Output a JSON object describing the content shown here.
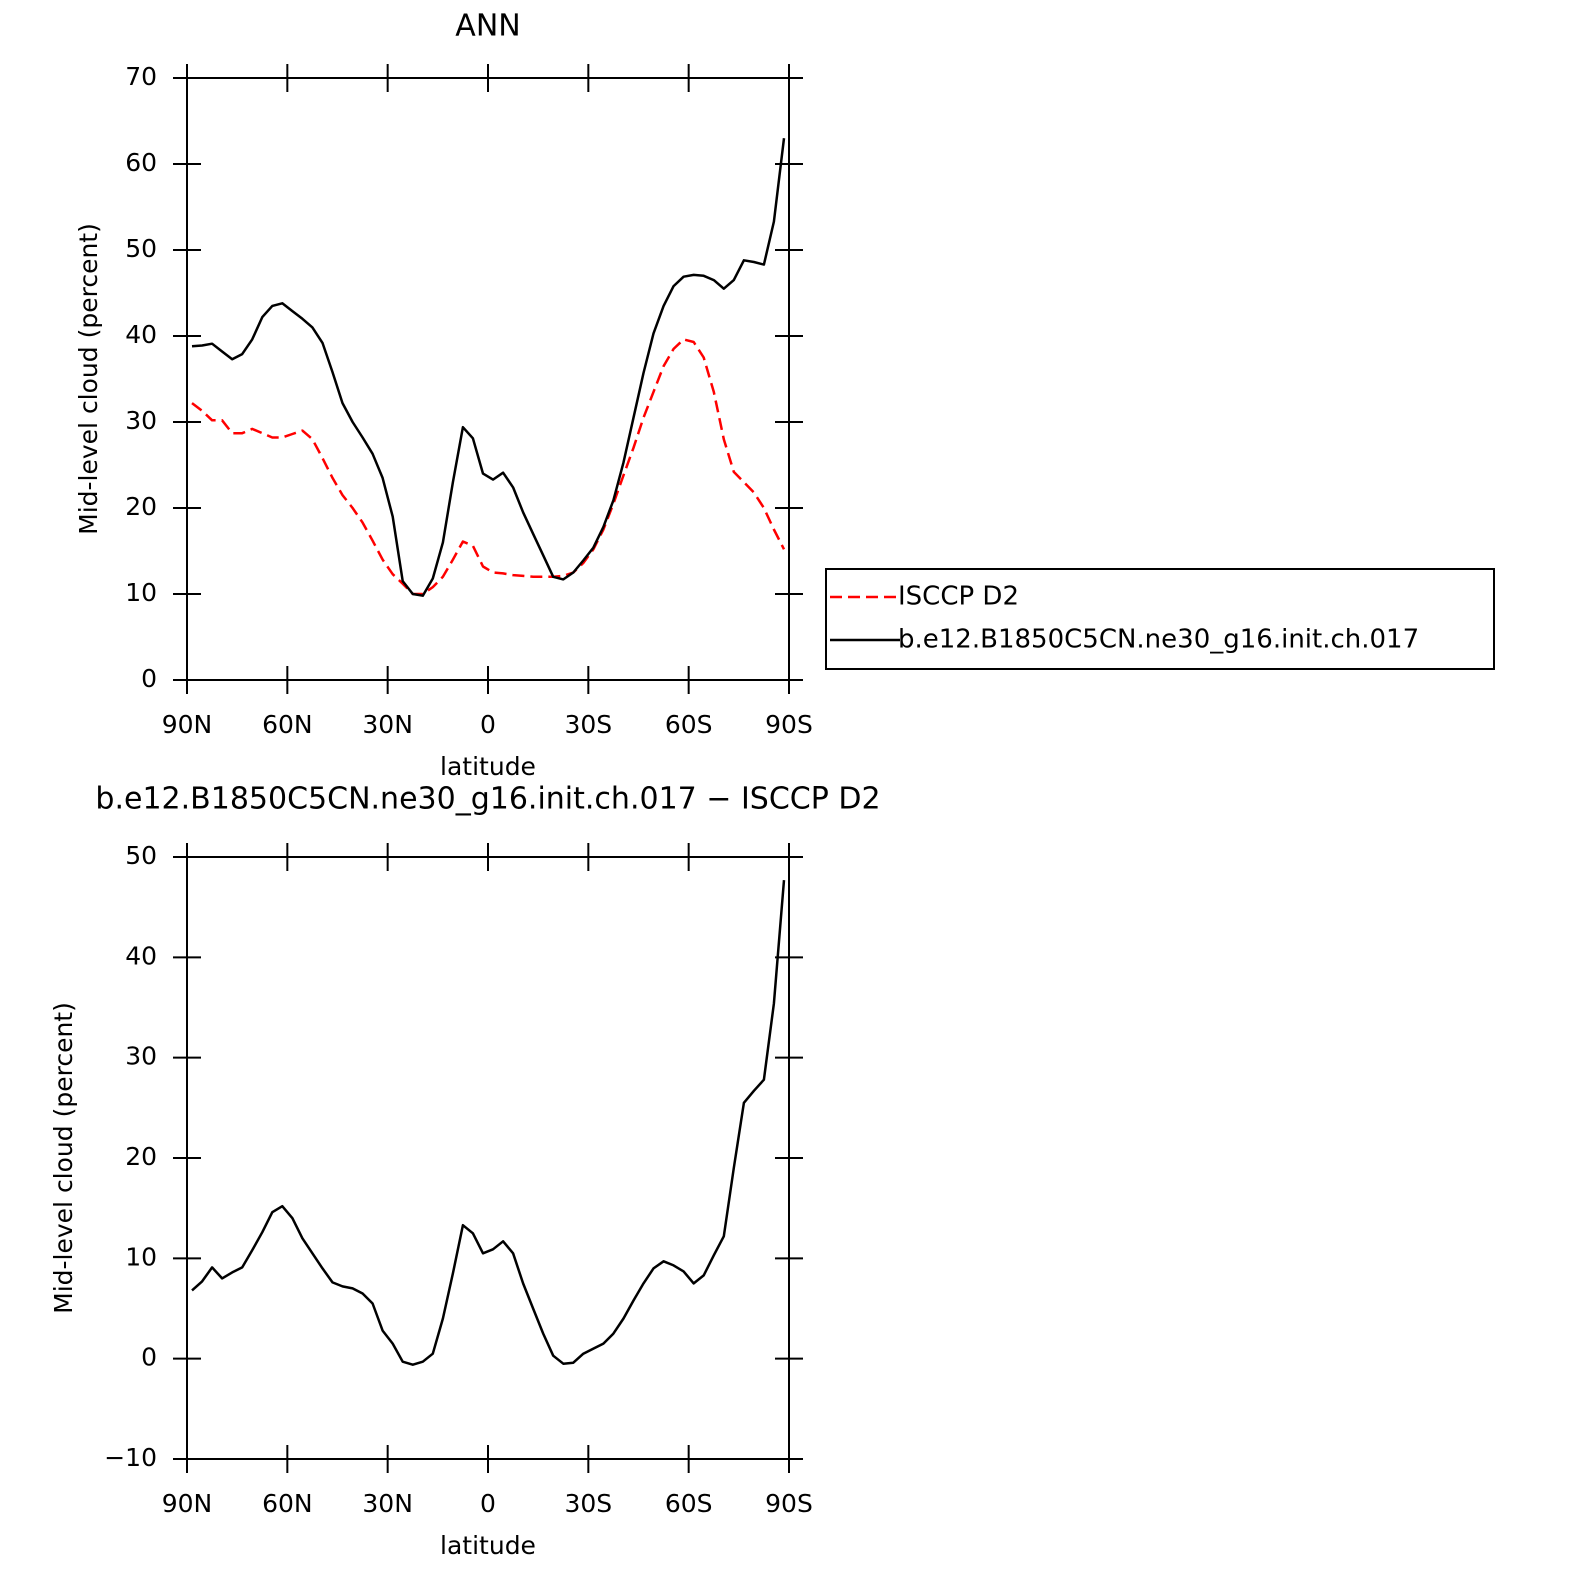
{
  "chart_data": [
    {
      "type": "line",
      "title": "ANN",
      "xlabel": "latitude",
      "ylabel": "Mid-level cloud (percent)",
      "x": [
        88.5,
        85.5,
        82.5,
        79.5,
        76.5,
        73.5,
        70.5,
        67.5,
        64.5,
        61.5,
        58.5,
        55.5,
        52.5,
        49.5,
        46.5,
        43.5,
        40.5,
        37.5,
        34.5,
        31.5,
        28.5,
        25.5,
        22.5,
        19.5,
        16.5,
        13.5,
        10.5,
        7.5,
        4.5,
        1.5,
        -1.5,
        -4.5,
        -7.5,
        -10.5,
        -13.5,
        -16.5,
        -19.5,
        -22.5,
        -25.5,
        -28.5,
        -31.5,
        -34.5,
        -37.5,
        -40.5,
        -43.5,
        -46.5,
        -49.5,
        -52.5,
        -55.5,
        -58.5,
        -61.5,
        -64.5,
        -67.5,
        -70.5,
        -73.5,
        -76.5,
        -79.5,
        -82.5,
        -85.5,
        -88.5
      ],
      "series": [
        {
          "name": "ISCCP D2",
          "color": "#ff0000",
          "style": "dashed",
          "values": [
            32.2,
            31.3,
            30.2,
            30.2,
            28.7,
            28.7,
            29.2,
            28.7,
            28.2,
            28.2,
            28.6,
            29.0,
            28.0,
            25.8,
            23.5,
            21.5,
            20.0,
            18.3,
            16.2,
            14.0,
            12.3,
            11.2,
            10.0,
            10.0,
            10.8,
            12.0,
            14.0,
            16.1,
            15.6,
            13.2,
            12.5,
            12.4,
            12.2,
            12.1,
            12.0,
            12.0,
            12.0,
            12.1,
            12.5,
            13.6,
            15.2,
            17.5,
            20.5,
            23.8,
            27.0,
            30.5,
            33.5,
            36.5,
            38.5,
            39.6,
            39.3,
            37.5,
            33.5,
            28.0,
            24.2,
            23.0,
            21.8,
            20.0,
            17.5,
            15.2
          ]
        },
        {
          "name": "b.e12.B1850C5CN.ne30_g16.init.ch.017",
          "color": "#000000",
          "style": "solid",
          "values": [
            38.8,
            38.9,
            39.1,
            38.2,
            37.3,
            37.9,
            39.6,
            42.2,
            43.5,
            43.8,
            42.9,
            42.0,
            41.0,
            39.2,
            35.8,
            32.2,
            30.0,
            28.2,
            26.3,
            23.5,
            19.0,
            11.5,
            10.0,
            9.8,
            11.8,
            16.0,
            23.0,
            29.4,
            28.1,
            24.0,
            23.3,
            24.1,
            22.4,
            19.5,
            17.0,
            14.5,
            12.0,
            11.7,
            12.5,
            13.9,
            15.4,
            17.8,
            20.9,
            25.3,
            30.5,
            35.7,
            40.3,
            43.5,
            45.8,
            46.9,
            47.1,
            47.0,
            46.5,
            45.5,
            46.5,
            48.8,
            48.6,
            48.3,
            53.3,
            63.0
          ]
        }
      ],
      "xlim": [
        90,
        -90
      ],
      "xticks": [
        {
          "value": 90,
          "label": "90N"
        },
        {
          "value": 60,
          "label": "60N"
        },
        {
          "value": 30,
          "label": "30N"
        },
        0,
        {
          "value": -30,
          "label": "30S"
        },
        {
          "value": -60,
          "label": "60S"
        },
        {
          "value": -90,
          "label": "90S"
        }
      ],
      "ylim": [
        0,
        70
      ],
      "yticks": [
        0,
        10,
        20,
        30,
        40,
        50,
        60,
        70
      ],
      "legend": "right"
    },
    {
      "type": "line",
      "title": "b.e12.B1850C5CN.ne30_g16.init.ch.017 − ISCCP D2",
      "xlabel": "latitude",
      "ylabel": "Mid-level cloud (percent)",
      "x": [
        88.5,
        85.5,
        82.5,
        79.5,
        76.5,
        73.5,
        70.5,
        67.5,
        64.5,
        61.5,
        58.5,
        55.5,
        52.5,
        49.5,
        46.5,
        43.5,
        40.5,
        37.5,
        34.5,
        31.5,
        28.5,
        25.5,
        22.5,
        19.5,
        16.5,
        13.5,
        10.5,
        7.5,
        4.5,
        1.5,
        -1.5,
        -4.5,
        -7.5,
        -10.5,
        -13.5,
        -16.5,
        -19.5,
        -22.5,
        -25.5,
        -28.5,
        -31.5,
        -34.5,
        -37.5,
        -40.5,
        -43.5,
        -46.5,
        -49.5,
        -52.5,
        -55.5,
        -58.5,
        -61.5,
        -64.5,
        -67.5,
        -70.5,
        -73.5,
        -76.5,
        -79.5,
        -82.5,
        -85.5,
        -88.5
      ],
      "color": "#000000",
      "values": [
        6.8,
        7.7,
        9.1,
        8.0,
        8.6,
        9.1,
        10.8,
        12.6,
        14.6,
        15.2,
        14.0,
        12.0,
        10.5,
        9.0,
        7.6,
        7.2,
        7.0,
        6.5,
        5.5,
        2.8,
        1.5,
        -0.3,
        -0.6,
        -0.3,
        0.5,
        4.0,
        8.5,
        13.3,
        12.5,
        10.5,
        10.9,
        11.7,
        10.5,
        7.5,
        5.0,
        2.5,
        0.3,
        -0.5,
        -0.4,
        0.5,
        1.0,
        1.5,
        2.5,
        4.0,
        5.8,
        7.5,
        9.0,
        9.7,
        9.3,
        8.7,
        7.5,
        8.3,
        10.3,
        12.2,
        19.0,
        25.5,
        26.7,
        27.8,
        35.4,
        47.7
      ],
      "xlim": [
        90,
        -90
      ],
      "xticks": [
        {
          "value": 90,
          "label": "90N"
        },
        {
          "value": 60,
          "label": "60N"
        },
        {
          "value": 30,
          "label": "30N"
        },
        0,
        {
          "value": -30,
          "label": "30S"
        },
        {
          "value": -60,
          "label": "60S"
        },
        {
          "value": -90,
          "label": "90S"
        }
      ],
      "ylim": [
        -10,
        50
      ],
      "yticks": [
        {
          "value": -10,
          "label": "−10"
        },
        0,
        10,
        20,
        30,
        40,
        50
      ]
    }
  ]
}
